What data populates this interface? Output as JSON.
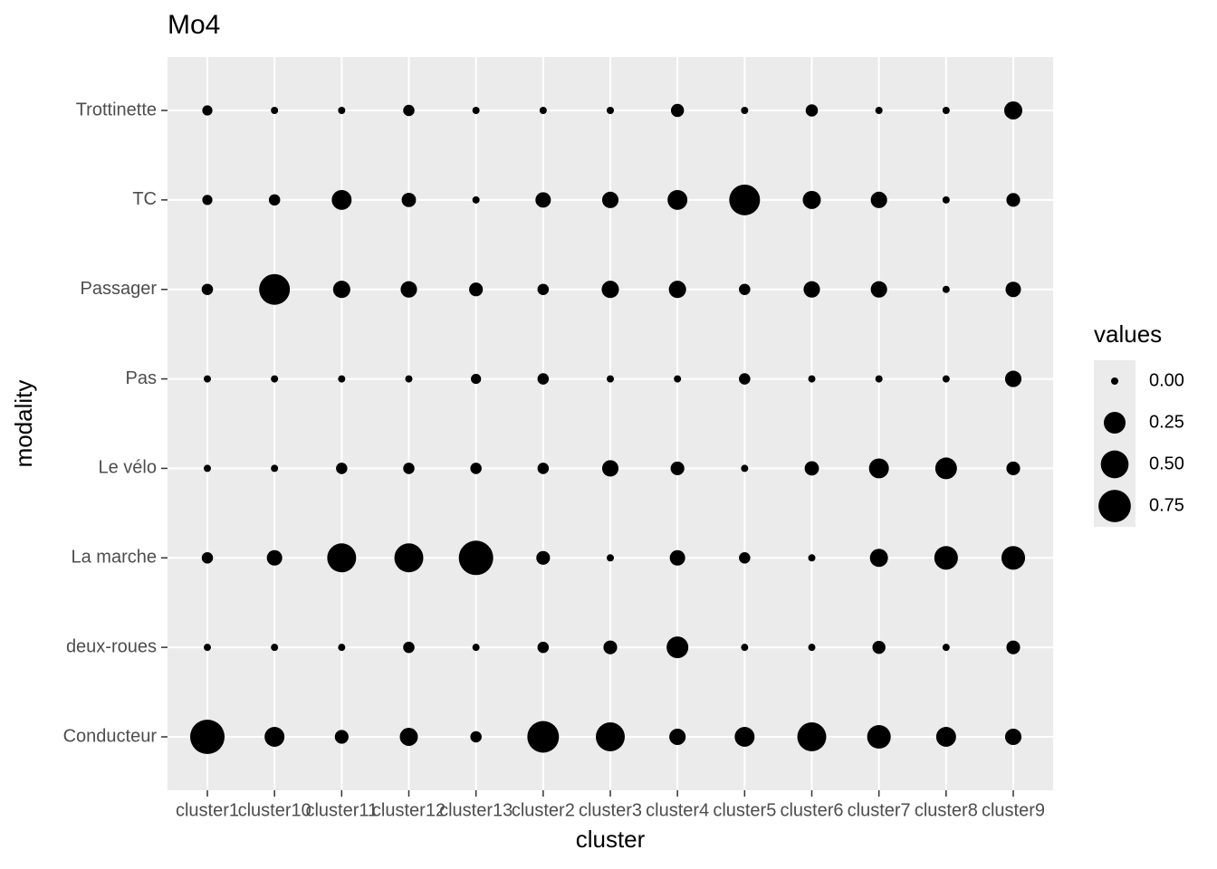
{
  "chart_data": {
    "type": "bubble",
    "title": "Mo4",
    "x_label": "cluster",
    "y_label": "modality",
    "categories": [
      "cluster1",
      "cluster10",
      "cluster11",
      "cluster12",
      "cluster13",
      "cluster2",
      "cluster3",
      "cluster4",
      "cluster5",
      "cluster6",
      "cluster7",
      "cluster8",
      "cluster9"
    ],
    "color": "#000000",
    "background": "#ebebeb",
    "grid": true,
    "series": [
      {
        "name": "Conducteur",
        "values": [
          0.88,
          0.19,
          0.05,
          0.14,
          0.02,
          0.71,
          0.56,
          0.1,
          0.19,
          0.56,
          0.32,
          0.19,
          0.1
        ]
      },
      {
        "name": "deux-roues",
        "values": [
          0,
          0,
          0,
          0.02,
          0,
          0.02,
          0.05,
          0.25,
          0,
          0,
          0.04,
          0,
          0.05
        ]
      },
      {
        "name": "La marche",
        "values": [
          0.02,
          0.08,
          0.56,
          0.56,
          0.88,
          0.05,
          0,
          0.08,
          0.02,
          0,
          0.14,
          0.32,
          0.32
        ]
      },
      {
        "name": "Le vélo",
        "values": [
          0,
          0,
          0.02,
          0.02,
          0.02,
          0.02,
          0.1,
          0.05,
          0,
          0.06,
          0.19,
          0.25,
          0.05
        ]
      },
      {
        "name": "Pas",
        "values": [
          0,
          0,
          0,
          0,
          0.01,
          0.02,
          0,
          0,
          0.02,
          0,
          0,
          0,
          0.1
        ]
      },
      {
        "name": "Passager",
        "values": [
          0.02,
          0.66,
          0.12,
          0.1,
          0.05,
          0.02,
          0.12,
          0.12,
          0.02,
          0.1,
          0.1,
          0,
          0.08
        ]
      },
      {
        "name": "TC",
        "values": [
          0.01,
          0.02,
          0.19,
          0.06,
          0,
          0.08,
          0.1,
          0.19,
          0.66,
          0.14,
          0.1,
          0,
          0.05
        ]
      },
      {
        "name": "Trottinette",
        "values": [
          0.01,
          0,
          0,
          0.02,
          0,
          0,
          0,
          0.04,
          0,
          0.03,
          0,
          0,
          0.14
        ]
      }
    ],
    "size_legend": {
      "title": "values",
      "breaks": [
        {
          "value": 0,
          "label": "0.00"
        },
        {
          "value": 0.25,
          "label": "0.25"
        },
        {
          "value": 0.5,
          "label": "0.50"
        },
        {
          "value": 0.75,
          "label": "0.75"
        }
      ]
    }
  }
}
